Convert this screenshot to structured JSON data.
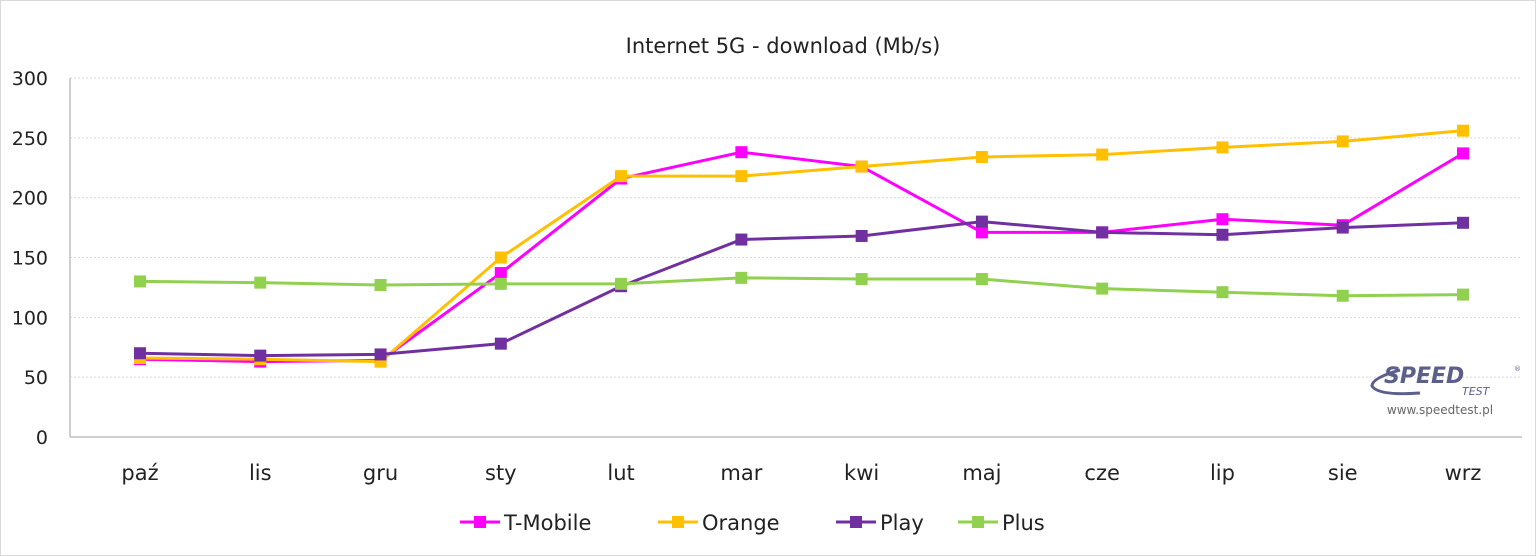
{
  "chart_data": {
    "type": "line",
    "title": "Internet 5G - download (Mb/s)",
    "xlabel": "",
    "ylabel": "",
    "categories": [
      "paź",
      "lis",
      "gru",
      "sty",
      "lut",
      "mar",
      "kwi",
      "maj",
      "cze",
      "lip",
      "sie",
      "wrz"
    ],
    "ylim": [
      0,
      300
    ],
    "yticks": [
      0,
      50,
      100,
      150,
      200,
      250,
      300
    ],
    "grid": true,
    "legend_position": "bottom",
    "series": [
      {
        "name": "T-Mobile",
        "color": "#FF00FF",
        "values": [
          65,
          63,
          64,
          137,
          216,
          238,
          226,
          171,
          171,
          182,
          177,
          237
        ]
      },
      {
        "name": "Orange",
        "color": "#FFC000",
        "values": [
          66,
          65,
          63,
          150,
          218,
          218,
          226,
          234,
          236,
          242,
          247,
          256
        ]
      },
      {
        "name": "Play",
        "color": "#7030A0",
        "values": [
          70,
          68,
          69,
          78,
          126,
          165,
          168,
          180,
          171,
          169,
          175,
          179
        ]
      },
      {
        "name": "Plus",
        "color": "#92D050",
        "values": [
          130,
          129,
          127,
          128,
          128,
          133,
          132,
          132,
          124,
          121,
          118,
          119
        ]
      }
    ]
  },
  "watermark": {
    "logo_text": "SPEED TEST",
    "url": "www.speedtest.pl"
  }
}
